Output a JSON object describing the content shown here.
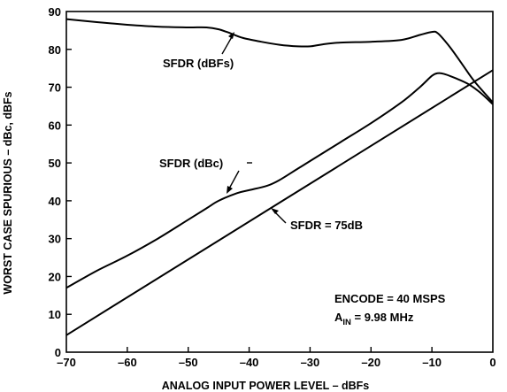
{
  "chart_data": {
    "type": "line",
    "xlabel": "ANALOG INPUT POWER LEVEL – dBFs",
    "ylabel": "WORST CASE SPURIOUS – dBc, dBFs",
    "xlim": [
      -70,
      0
    ],
    "ylim": [
      0,
      90
    ],
    "x_ticks": [
      "–70",
      "–60",
      "–50",
      "–40",
      "–30",
      "–20",
      "–10",
      "0"
    ],
    "y_ticks": [
      "0",
      "10",
      "20",
      "30",
      "40",
      "50",
      "60",
      "70",
      "80",
      "90"
    ],
    "grid": false,
    "series": [
      {
        "name": "SFDR (dBFs)",
        "x": [
          -70,
          -65,
          -60,
          -55,
          -50,
          -47,
          -45,
          -43,
          -41,
          -38,
          -35,
          -32,
          -30,
          -28,
          -25,
          -20,
          -15,
          -12,
          -10,
          -9,
          -7,
          -5,
          -3,
          0
        ],
        "y": [
          88,
          87.2,
          86.5,
          86,
          85.8,
          85.8,
          85.3,
          84.2,
          83,
          82,
          81.2,
          80.8,
          80.8,
          81.3,
          81.8,
          82,
          82.5,
          83.8,
          84.6,
          84.2,
          80.5,
          76,
          71.5,
          66
        ]
      },
      {
        "name": "SFDR (dBc)",
        "x": [
          -70,
          -65,
          -60,
          -55,
          -50,
          -47,
          -45,
          -42,
          -40,
          -37,
          -35,
          -32,
          -30,
          -25,
          -20,
          -15,
          -12,
          -10,
          -9,
          -8,
          -6,
          -4,
          -2,
          0
        ],
        "y": [
          17,
          21.5,
          25.5,
          30,
          35,
          38,
          40,
          42,
          42.8,
          44,
          45.5,
          48.5,
          50.5,
          55.5,
          60.5,
          66,
          70,
          73,
          73.7,
          73.5,
          72.3,
          70.8,
          68.5,
          65.5
        ]
      },
      {
        "name": "SFDR = 75dB",
        "x": [
          -70,
          0
        ],
        "y": [
          4.5,
          74.5
        ]
      }
    ],
    "annotations": {
      "dbfs": "SFDR (dBFs)",
      "dbc": "SFDR (dBc)",
      "ref": "SFDR = 75dB",
      "encode": "ENCODE = 40 MSPS",
      "ain_main": "A",
      "ain_sub": "IN",
      "ain_value": " = 9.98 MHz"
    }
  }
}
